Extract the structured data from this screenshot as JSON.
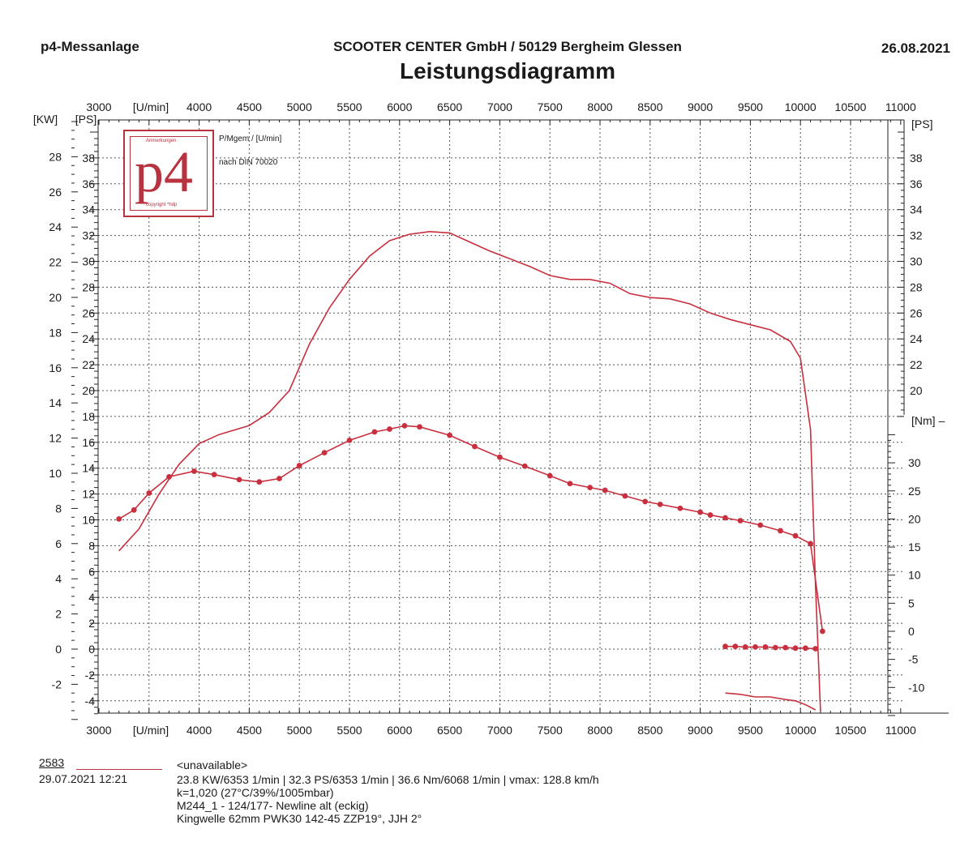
{
  "header": {
    "left": "p4-Messanlage",
    "center": "SCOOTER CENTER GmbH / 50129 Bergheim Glessen",
    "right": "26.08.2021",
    "title": "Leistungsdiagramm"
  },
  "logo": {
    "text": "p4",
    "top_text": "Anmerkungen",
    "bottom_text": "copyright *hdp"
  },
  "notes": {
    "line1": "P/Mgem / [U/min]",
    "line2": "nach DIN 70020"
  },
  "colors": {
    "curve": "#c8303f",
    "grid": "#555555",
    "logo": "#b83340"
  },
  "chart_data": {
    "type": "line",
    "grid": true,
    "x_axis": {
      "label": "[U/min]",
      "range": [
        3000,
        11000
      ],
      "ticks": [
        3000,
        4000,
        4500,
        5000,
        5500,
        6000,
        6500,
        7000,
        7500,
        8000,
        8500,
        9000,
        9500,
        10000,
        10500,
        11000
      ]
    },
    "left_axis_kw": {
      "label": "[KW]",
      "range": [
        -4,
        30
      ],
      "ticks": [
        -2,
        0,
        2,
        4,
        6,
        8,
        10,
        12,
        14,
        16,
        18,
        20,
        22,
        24,
        26,
        28
      ]
    },
    "left_axis_ps": {
      "label": "[PS]",
      "range": [
        -5,
        40
      ],
      "ticks": [
        -4,
        -2,
        0,
        2,
        4,
        6,
        8,
        10,
        12,
        14,
        16,
        18,
        20,
        22,
        24,
        26,
        28,
        30,
        32,
        34,
        36,
        38
      ]
    },
    "right_axis_ps": {
      "label": "[PS]",
      "ticks": [
        20,
        22,
        24,
        26,
        28,
        30,
        32,
        34,
        36,
        38
      ]
    },
    "right_axis_nm": {
      "label": "[Nm]",
      "ticks": [
        -10,
        -5,
        0,
        5,
        10,
        15,
        20,
        25,
        30
      ]
    },
    "series": [
      {
        "unit": "PS",
        "x": [
          3200,
          3400,
          3600,
          3800,
          4000,
          4200,
          4500,
          4700,
          4900,
          5100,
          5300,
          5500,
          5700,
          5900,
          6100,
          6300,
          6500,
          6700,
          6900,
          7100,
          7300,
          7500,
          7700,
          7900,
          8100,
          8300,
          8500,
          8700,
          8900,
          9100,
          9300,
          9500,
          9700,
          9900,
          10000,
          10100,
          10150,
          10200
        ],
        "y": [
          7.6,
          9.3,
          12.0,
          14.3,
          15.9,
          16.6,
          17.3,
          18.3,
          20.0,
          23.6,
          26.4,
          28.6,
          30.4,
          31.6,
          32.1,
          32.3,
          32.2,
          31.5,
          30.8,
          30.2,
          29.6,
          28.9,
          28.6,
          28.6,
          28.3,
          27.5,
          27.2,
          27.1,
          26.7,
          26.0,
          25.5,
          25.1,
          24.7,
          23.8,
          22.5,
          17.0,
          5.0,
          -4.8
        ]
      },
      {
        "unit": "Nm",
        "markers": true,
        "x": [
          3200,
          3350,
          3500,
          3700,
          3950,
          4150,
          4400,
          4600,
          4800,
          5000,
          5250,
          5500,
          5750,
          5900,
          6050,
          6200,
          6500,
          6750,
          7000,
          7250,
          7500,
          7700,
          7900,
          8050,
          8250,
          8450,
          8600,
          8800,
          9000,
          9100,
          9250,
          9400,
          9600,
          9800,
          9950,
          10100,
          10220
        ],
        "y": [
          20.0,
          21.6,
          24.6,
          27.5,
          28.5,
          27.9,
          27.0,
          26.6,
          27.2,
          29.5,
          31.8,
          34.0,
          35.5,
          36.0,
          36.6,
          36.4,
          34.9,
          32.9,
          31.0,
          29.4,
          27.7,
          26.3,
          25.6,
          25.1,
          24.1,
          23.1,
          22.6,
          21.9,
          21.2,
          20.7,
          20.2,
          19.7,
          18.9,
          17.9,
          17.0,
          15.6,
          0.0
        ]
      },
      {
        "unit": "Nm",
        "markers": true,
        "x": [
          9250,
          9350,
          9450,
          9550,
          9650,
          9750,
          9850,
          9950,
          10050,
          10150
        ],
        "y": [
          -2.7,
          -2.7,
          -2.8,
          -2.8,
          -2.8,
          -2.9,
          -2.9,
          -3.0,
          -3.0,
          -3.1
        ]
      },
      {
        "unit": "PS",
        "x": [
          9250,
          9400,
          9550,
          9700,
          9850,
          9950,
          10050,
          10150
        ],
        "y": [
          -3.4,
          -3.5,
          -3.7,
          -3.7,
          -3.9,
          -4.0,
          -4.3,
          -4.7
        ]
      }
    ]
  },
  "footer": {
    "id": "2583",
    "date": "29.07.2021  12:21",
    "unavailable": "<unavailable>",
    "line1": "23.8 KW/6353 1/min  |  32.3 PS/6353 1/min  |  36.6 Nm/6068 1/min | vmax: 128.8 km/h",
    "line2": "k=1,020 (27°C/39%/1005mbar)",
    "line3": "M244_1 - 124/177- Newline alt (eckig)",
    "line4": "Kingwelle 62mm PWK30 142-45 ZZP19°, JJH 2°"
  }
}
